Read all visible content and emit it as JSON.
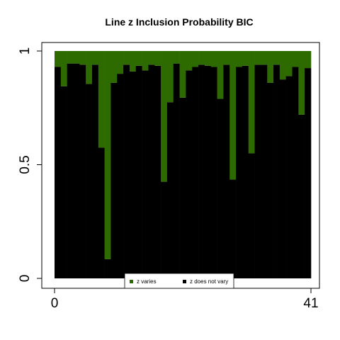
{
  "chart_data": {
    "type": "bar",
    "stacked": true,
    "title": "Line z Inclusion Probability BIC",
    "xlabel": "",
    "ylabel": "",
    "x_ticks": [
      "0",
      "41"
    ],
    "y_ticks": [
      "0",
      "0.5",
      "1"
    ],
    "ylim": [
      0,
      1
    ],
    "xlim": [
      0,
      41
    ],
    "grid": false,
    "legend_position": "bottom-center",
    "series": [
      {
        "name": "z varies",
        "color": "#2d6a00",
        "values": [
          0.07,
          0.155,
          0.055,
          0.055,
          0.06,
          0.145,
          0.06,
          0.425,
          0.915,
          0.14,
          0.1,
          0.06,
          0.09,
          0.065,
          0.085,
          0.06,
          0.065,
          0.575,
          0.225,
          0.055,
          0.205,
          0.085,
          0.07,
          0.06,
          0.065,
          0.07,
          0.21,
          0.06,
          0.565,
          0.07,
          0.065,
          0.45,
          0.06,
          0.06,
          0.14,
          0.06,
          0.125,
          0.11,
          0.07,
          0.28,
          0.075
        ]
      },
      {
        "name": "z does not vary",
        "color": "#000000",
        "values": [
          0.93,
          0.845,
          0.945,
          0.945,
          0.94,
          0.855,
          0.94,
          0.575,
          0.085,
          0.86,
          0.9,
          0.94,
          0.91,
          0.935,
          0.915,
          0.94,
          0.935,
          0.425,
          0.775,
          0.945,
          0.795,
          0.915,
          0.93,
          0.94,
          0.935,
          0.93,
          0.79,
          0.94,
          0.435,
          0.93,
          0.935,
          0.55,
          0.94,
          0.94,
          0.86,
          0.94,
          0.875,
          0.89,
          0.93,
          0.72,
          0.925
        ]
      }
    ]
  }
}
